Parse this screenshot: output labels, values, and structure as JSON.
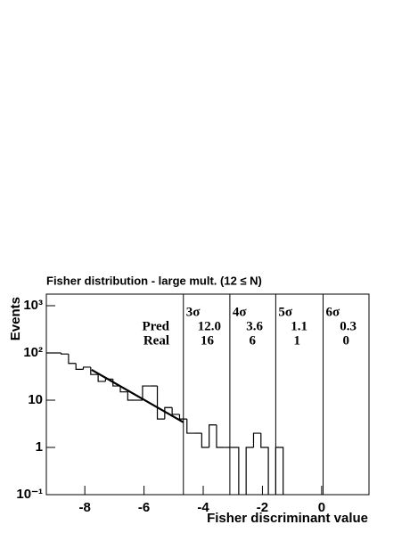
{
  "chart_data": {
    "type": "histogram",
    "title": "Fisher distribution - large mult. (12 ≤ N)",
    "xlabel": "Fisher discriminant value",
    "ylabel": "Events",
    "bins": [
      -9.3,
      -9.05,
      -8.8,
      -8.55,
      -8.3,
      -8.05,
      -7.8,
      -7.55,
      -7.3,
      -7.05,
      -6.8,
      -6.55,
      -6.3,
      -6.05,
      -5.8,
      -5.55,
      -5.3,
      -5.05,
      -4.8,
      -4.55,
      -4.3,
      -4.05,
      -3.8,
      -3.55,
      -3.3,
      -3.05,
      -2.8,
      -2.55,
      -2.3,
      -2.05,
      -1.8,
      -1.55,
      -1.3
    ],
    "values": [
      100,
      100,
      95,
      60,
      45,
      50,
      35,
      25,
      28,
      20,
      15,
      10,
      10,
      20,
      20,
      4,
      7,
      5,
      4,
      2,
      2,
      1,
      3,
      1,
      1,
      1,
      null,
      1,
      2,
      1,
      null,
      1
    ],
    "color": "#000000",
    "fit": {
      "x": [
        -7.77,
        -4.67
      ],
      "values": [
        44,
        3.4
      ]
    },
    "vlines": [
      -4.67,
      -3.1,
      -1.55,
      0.05
    ],
    "sigma_labels": [
      "3σ",
      "4σ",
      "5σ",
      "6σ"
    ],
    "pred": {
      "label": "Pred",
      "values": [
        12,
        3.6,
        1.1,
        0.3
      ],
      "value_labels": [
        "12.0",
        "3.6",
        "1.1",
        "0.3"
      ]
    },
    "real": {
      "label": "Real",
      "values": [
        16,
        6,
        1,
        0
      ]
    },
    "xlim": [
      -9.3,
      1.6
    ],
    "xticks": [
      -8,
      -6,
      -4,
      -2,
      0
    ],
    "ylim": [
      0.1,
      1760
    ],
    "log_y": true,
    "yticks": [
      {
        "value": 0.1,
        "label": "10⁻¹"
      },
      1,
      10,
      {
        "value": 100,
        "label": "10²"
      },
      {
        "value": 1000,
        "label": "10³"
      }
    ]
  }
}
